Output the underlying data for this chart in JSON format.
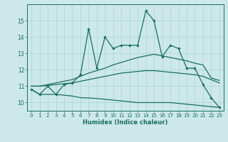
{
  "x": [
    0,
    1,
    2,
    3,
    4,
    5,
    6,
    7,
    8,
    9,
    10,
    11,
    12,
    13,
    14,
    15,
    16,
    17,
    18,
    19,
    20,
    21,
    22,
    23
  ],
  "main_line": [
    10.8,
    10.5,
    11.0,
    10.5,
    11.1,
    11.2,
    11.7,
    14.5,
    12.1,
    14.0,
    13.3,
    13.5,
    13.5,
    13.5,
    15.6,
    15.0,
    12.8,
    13.5,
    13.3,
    12.1,
    12.1,
    11.1,
    10.3,
    9.7
  ],
  "upper_line": [
    11.0,
    11.0,
    11.1,
    11.2,
    11.3,
    11.4,
    11.6,
    11.8,
    11.95,
    12.1,
    12.3,
    12.45,
    12.6,
    12.75,
    12.85,
    12.95,
    12.85,
    12.75,
    12.65,
    12.55,
    12.4,
    12.3,
    11.5,
    11.35
  ],
  "mid_line": [
    11.0,
    11.0,
    11.05,
    11.1,
    11.15,
    11.2,
    11.3,
    11.4,
    11.5,
    11.6,
    11.7,
    11.8,
    11.85,
    11.9,
    11.95,
    11.95,
    11.9,
    11.85,
    11.8,
    11.75,
    11.7,
    11.6,
    11.4,
    11.2
  ],
  "lower_line": [
    10.8,
    10.5,
    10.5,
    10.5,
    10.45,
    10.4,
    10.3,
    10.28,
    10.25,
    10.2,
    10.15,
    10.1,
    10.05,
    10.0,
    10.0,
    10.0,
    10.0,
    10.0,
    9.95,
    9.9,
    9.85,
    9.8,
    9.75,
    9.7
  ],
  "bg_color": "#cce8e8",
  "line_color": "#1a6e60",
  "grid_color": "#b0d8d8",
  "xlabel": "Humidex (Indice chaleur)",
  "xlim": [
    -0.5,
    23.5
  ],
  "ylim": [
    9.5,
    16.0
  ],
  "yticks": [
    10,
    11,
    12,
    13,
    14,
    15
  ],
  "xticks": [
    0,
    1,
    2,
    3,
    4,
    5,
    6,
    7,
    8,
    9,
    10,
    11,
    12,
    13,
    14,
    15,
    16,
    17,
    18,
    19,
    20,
    21,
    22,
    23
  ]
}
